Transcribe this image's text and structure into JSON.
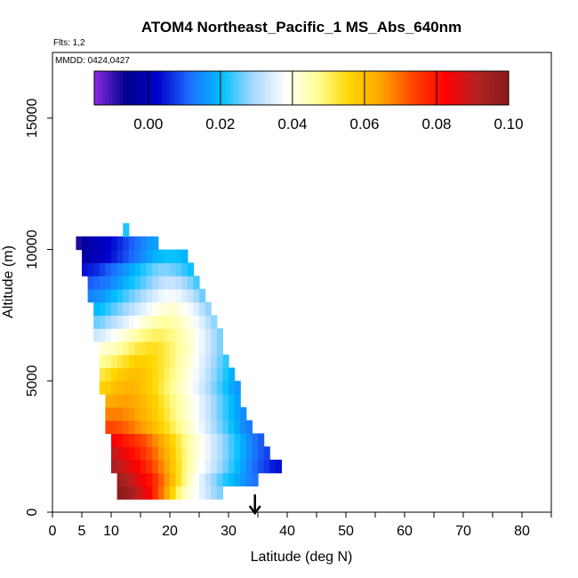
{
  "chart_data": {
    "type": "heatmap",
    "title": "ATOM4 Northeast_Pacific_1 MS_Abs_640nm",
    "flights_text": "Flts: 1,2",
    "dates_text": "MMDD: 0424,0427",
    "xlabel": "Latitude (deg N)",
    "ylabel": "Altitude (m)",
    "xlim": [
      0,
      85
    ],
    "ylim": [
      0,
      17500
    ],
    "x_ticks": [
      0,
      5,
      10,
      20,
      30,
      40,
      50,
      60,
      70,
      80
    ],
    "x_minor_ticks": [
      15,
      25,
      35,
      45,
      55,
      65,
      75,
      85
    ],
    "y_ticks": [
      0,
      5000,
      10000,
      15000
    ],
    "marker": {
      "latitude": 34.5,
      "symbol": "arrow-down",
      "color": "#000000"
    },
    "colorbar": {
      "range": [
        -0.015,
        0.1
      ],
      "ticks": [
        0.0,
        0.02,
        0.04,
        0.06,
        0.08,
        0.1
      ],
      "tick_labels": [
        "0.00",
        "0.02",
        "0.04",
        "0.06",
        "0.08",
        "0.10"
      ],
      "colors": [
        "#8a2be2",
        "#00008b",
        "#0000cd",
        "#1e6fff",
        "#00bfff",
        "#aad8ff",
        "#ffffff",
        "#ffff99",
        "#ffd700",
        "#ffa500",
        "#ff4500",
        "#ff0000",
        "#b22222",
        "#8b1a1a"
      ]
    },
    "bin_size": {
      "latitude": 1,
      "altitude": 500
    },
    "rows": [
      {
        "alt": 750,
        "lat_start": 11,
        "values": [
          0.099,
          0.097,
          0.094,
          0.09,
          0.086,
          0.082,
          0.076,
          0.07,
          0.064,
          0.056,
          0.049,
          0.044,
          0.041,
          0.038,
          0.035,
          0.032,
          0.029,
          0.027
        ]
      },
      {
        "alt": 1250,
        "lat_start": 11,
        "values": [
          0.095,
          0.092,
          0.089,
          0.086,
          0.083,
          0.08,
          0.076,
          0.071,
          0.066,
          0.06,
          0.054,
          0.048,
          0.043,
          0.039,
          0.035,
          0.031,
          0.028,
          0.025,
          0.022,
          0.02,
          0.018,
          0.016,
          0.014,
          0.012
        ]
      },
      {
        "alt": 1750,
        "lat_start": 10,
        "values": [
          0.093,
          0.09,
          0.087,
          0.085,
          0.082,
          0.079,
          0.076,
          0.072,
          0.068,
          0.064,
          0.059,
          0.054,
          0.049,
          0.045,
          0.041,
          0.038,
          0.035,
          0.032,
          0.029,
          0.026,
          0.023,
          0.02,
          0.017,
          0.014,
          0.011,
          0.009,
          0.007,
          0.005,
          0.004
        ]
      },
      {
        "alt": 2250,
        "lat_start": 10,
        "values": [
          0.089,
          0.086,
          0.084,
          0.081,
          0.079,
          0.076,
          0.073,
          0.07,
          0.066,
          0.062,
          0.058,
          0.053,
          0.049,
          0.045,
          0.042,
          0.039,
          0.036,
          0.033,
          0.03,
          0.027,
          0.024,
          0.021,
          0.018,
          0.015,
          0.012,
          0.01,
          0.008
        ]
      },
      {
        "alt": 2750,
        "lat_start": 10,
        "values": [
          0.083,
          0.081,
          0.079,
          0.077,
          0.075,
          0.073,
          0.07,
          0.067,
          0.064,
          0.06,
          0.056,
          0.052,
          0.048,
          0.045,
          0.042,
          0.039,
          0.036,
          0.033,
          0.03,
          0.027,
          0.024,
          0.021,
          0.018,
          0.015,
          0.012,
          0.01
        ]
      },
      {
        "alt": 3250,
        "lat_start": 9,
        "values": [
          0.074,
          0.073,
          0.072,
          0.071,
          0.069,
          0.067,
          0.065,
          0.063,
          0.06,
          0.057,
          0.054,
          0.051,
          0.048,
          0.045,
          0.042,
          0.039,
          0.036,
          0.033,
          0.03,
          0.027,
          0.024,
          0.021,
          0.018,
          0.015,
          0.013
        ]
      },
      {
        "alt": 3750,
        "lat_start": 9,
        "values": [
          0.068,
          0.068,
          0.068,
          0.067,
          0.066,
          0.064,
          0.062,
          0.06,
          0.058,
          0.055,
          0.052,
          0.049,
          0.046,
          0.043,
          0.041,
          0.038,
          0.035,
          0.032,
          0.029,
          0.026,
          0.023,
          0.02,
          0.017,
          0.015
        ]
      },
      {
        "alt": 4250,
        "lat_start": 9,
        "values": [
          0.063,
          0.064,
          0.065,
          0.065,
          0.064,
          0.063,
          0.061,
          0.059,
          0.057,
          0.054,
          0.051,
          0.048,
          0.046,
          0.043,
          0.041,
          0.038,
          0.035,
          0.032,
          0.029,
          0.026,
          0.023,
          0.02,
          0.017
        ]
      },
      {
        "alt": 4750,
        "lat_start": 8,
        "values": [
          0.057,
          0.058,
          0.06,
          0.061,
          0.062,
          0.062,
          0.061,
          0.059,
          0.057,
          0.055,
          0.052,
          0.049,
          0.047,
          0.044,
          0.042,
          0.039,
          0.036,
          0.033,
          0.03,
          0.027,
          0.024,
          0.021,
          0.018,
          0.016
        ]
      },
      {
        "alt": 5250,
        "lat_start": 8,
        "values": [
          0.052,
          0.054,
          0.056,
          0.058,
          0.059,
          0.06,
          0.06,
          0.059,
          0.057,
          0.055,
          0.053,
          0.05,
          0.048,
          0.045,
          0.043,
          0.04,
          0.037,
          0.034,
          0.031,
          0.028,
          0.025,
          0.022,
          0.019
        ]
      },
      {
        "alt": 5750,
        "lat_start": 8,
        "values": [
          0.047,
          0.048,
          0.05,
          0.052,
          0.054,
          0.056,
          0.057,
          0.057,
          0.056,
          0.055,
          0.053,
          0.051,
          0.049,
          0.046,
          0.044,
          0.041,
          0.038,
          0.035,
          0.032,
          0.029,
          0.026,
          0.023
        ]
      },
      {
        "alt": 6250,
        "lat_start": 8,
        "values": [
          0.042,
          0.043,
          0.044,
          0.046,
          0.048,
          0.05,
          0.052,
          0.053,
          0.054,
          0.054,
          0.053,
          0.051,
          0.049,
          0.047,
          0.045,
          0.042,
          0.039,
          0.036,
          0.033,
          0.03,
          0.027
        ]
      },
      {
        "alt": 6750,
        "lat_start": 7,
        "values": [
          0.033,
          0.034,
          0.036,
          0.038,
          0.04,
          0.042,
          0.044,
          0.046,
          0.048,
          0.049,
          0.05,
          0.05,
          0.049,
          0.048,
          0.046,
          0.044,
          0.042,
          0.039,
          0.036,
          0.033,
          0.03,
          0.027
        ]
      },
      {
        "alt": 7250,
        "lat_start": 7,
        "values": [
          0.026,
          0.027,
          0.029,
          0.031,
          0.033,
          0.035,
          0.037,
          0.039,
          0.041,
          0.043,
          0.045,
          0.046,
          0.046,
          0.045,
          0.044,
          0.042,
          0.04,
          0.037,
          0.034,
          0.031,
          0.028
        ]
      },
      {
        "alt": 7750,
        "lat_start": 7,
        "values": [
          0.02,
          0.021,
          0.023,
          0.025,
          0.027,
          0.029,
          0.031,
          0.033,
          0.035,
          0.037,
          0.039,
          0.041,
          0.042,
          0.042,
          0.041,
          0.039,
          0.037,
          0.034,
          0.031,
          0.028
        ]
      },
      {
        "alt": 8250,
        "lat_start": 6,
        "values": [
          0.014,
          0.015,
          0.016,
          0.018,
          0.02,
          0.022,
          0.024,
          0.026,
          0.028,
          0.03,
          0.032,
          0.034,
          0.036,
          0.037,
          0.037,
          0.036,
          0.034,
          0.032,
          0.029,
          0.026
        ]
      },
      {
        "alt": 8750,
        "lat_start": 6,
        "values": [
          0.01,
          0.011,
          0.012,
          0.013,
          0.015,
          0.017,
          0.019,
          0.021,
          0.023,
          0.025,
          0.027,
          0.029,
          0.031,
          0.032,
          0.032,
          0.031,
          0.029,
          0.027,
          0.024
        ]
      },
      {
        "alt": 9250,
        "lat_start": 5,
        "values": [
          0.004,
          0.005,
          0.006,
          0.008,
          0.01,
          0.012,
          0.014,
          0.016,
          0.018,
          0.02,
          0.022,
          0.024,
          0.026,
          0.027,
          0.027,
          0.026,
          0.025,
          0.023,
          0.021
        ]
      },
      {
        "alt": 9750,
        "lat_start": 5,
        "values": [
          -0.002,
          -0.001,
          0.0,
          0.001,
          0.003,
          0.005,
          0.007,
          0.009,
          0.011,
          0.013,
          0.015,
          0.017,
          0.019,
          0.02,
          0.021,
          0.021,
          0.02,
          0.019
        ]
      },
      {
        "alt": 10250,
        "lat_start": 4,
        "values": [
          -0.008,
          -0.004,
          -0.002,
          0.0,
          0.001,
          0.002,
          0.004,
          0.006,
          0.008,
          0.01,
          0.012,
          0.014,
          0.016,
          0.017
        ]
      },
      {
        "alt": 10750,
        "lat_start": 12,
        "values": [
          0.022
        ]
      }
    ]
  }
}
